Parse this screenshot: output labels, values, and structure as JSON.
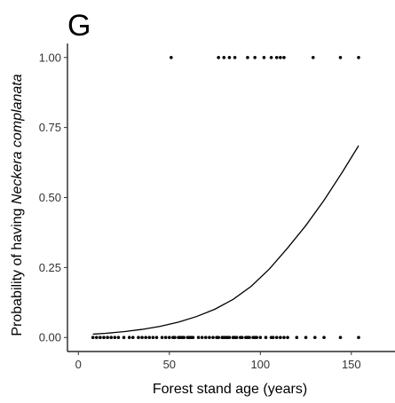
{
  "chart_data": {
    "type": "scatter",
    "panel_label": "G",
    "xlabel": "Forest stand age (years)",
    "ylabel_prefix": "Probability of having ",
    "ylabel_species": "Neckera complanata",
    "xlim": [
      -6,
      174
    ],
    "ylim": [
      -0.05,
      1.05
    ],
    "x_ticks": [
      0,
      50,
      100,
      150
    ],
    "x_tick_labels": [
      "0",
      "50",
      "100",
      "150"
    ],
    "y_ticks": [
      0,
      0.25,
      0.5,
      0.75,
      1
    ],
    "y_tick_labels": [
      "0.00",
      "0.25",
      "0.50",
      "0.75",
      "1.00"
    ],
    "grid": false,
    "points_presence": [
      51,
      77,
      80,
      83,
      86,
      93,
      97,
      102,
      106,
      109,
      111,
      113,
      129,
      144,
      154
    ],
    "points_absence": [
      8,
      10,
      12,
      14,
      16,
      18,
      20,
      22,
      25,
      28,
      30,
      33,
      35,
      37,
      39,
      41,
      43,
      46,
      48,
      50,
      52,
      53,
      55,
      56,
      57,
      58,
      60,
      61,
      62,
      63,
      66,
      68,
      70,
      72,
      74,
      76,
      77,
      79,
      80,
      81,
      82,
      83,
      85,
      86,
      87,
      89,
      90,
      92,
      93,
      94,
      96,
      97,
      98,
      100,
      103,
      106,
      107,
      109,
      111,
      113,
      115,
      120,
      125,
      130,
      135,
      144,
      154
    ],
    "fit_line": {
      "x": [
        8,
        15,
        25,
        35,
        45,
        55,
        65,
        75,
        85,
        95,
        105,
        115,
        125,
        135,
        145,
        154
      ],
      "y": [
        0.012,
        0.015,
        0.021,
        0.029,
        0.04,
        0.055,
        0.075,
        0.101,
        0.136,
        0.183,
        0.245,
        0.32,
        0.4,
        0.49,
        0.59,
        0.685
      ]
    }
  }
}
